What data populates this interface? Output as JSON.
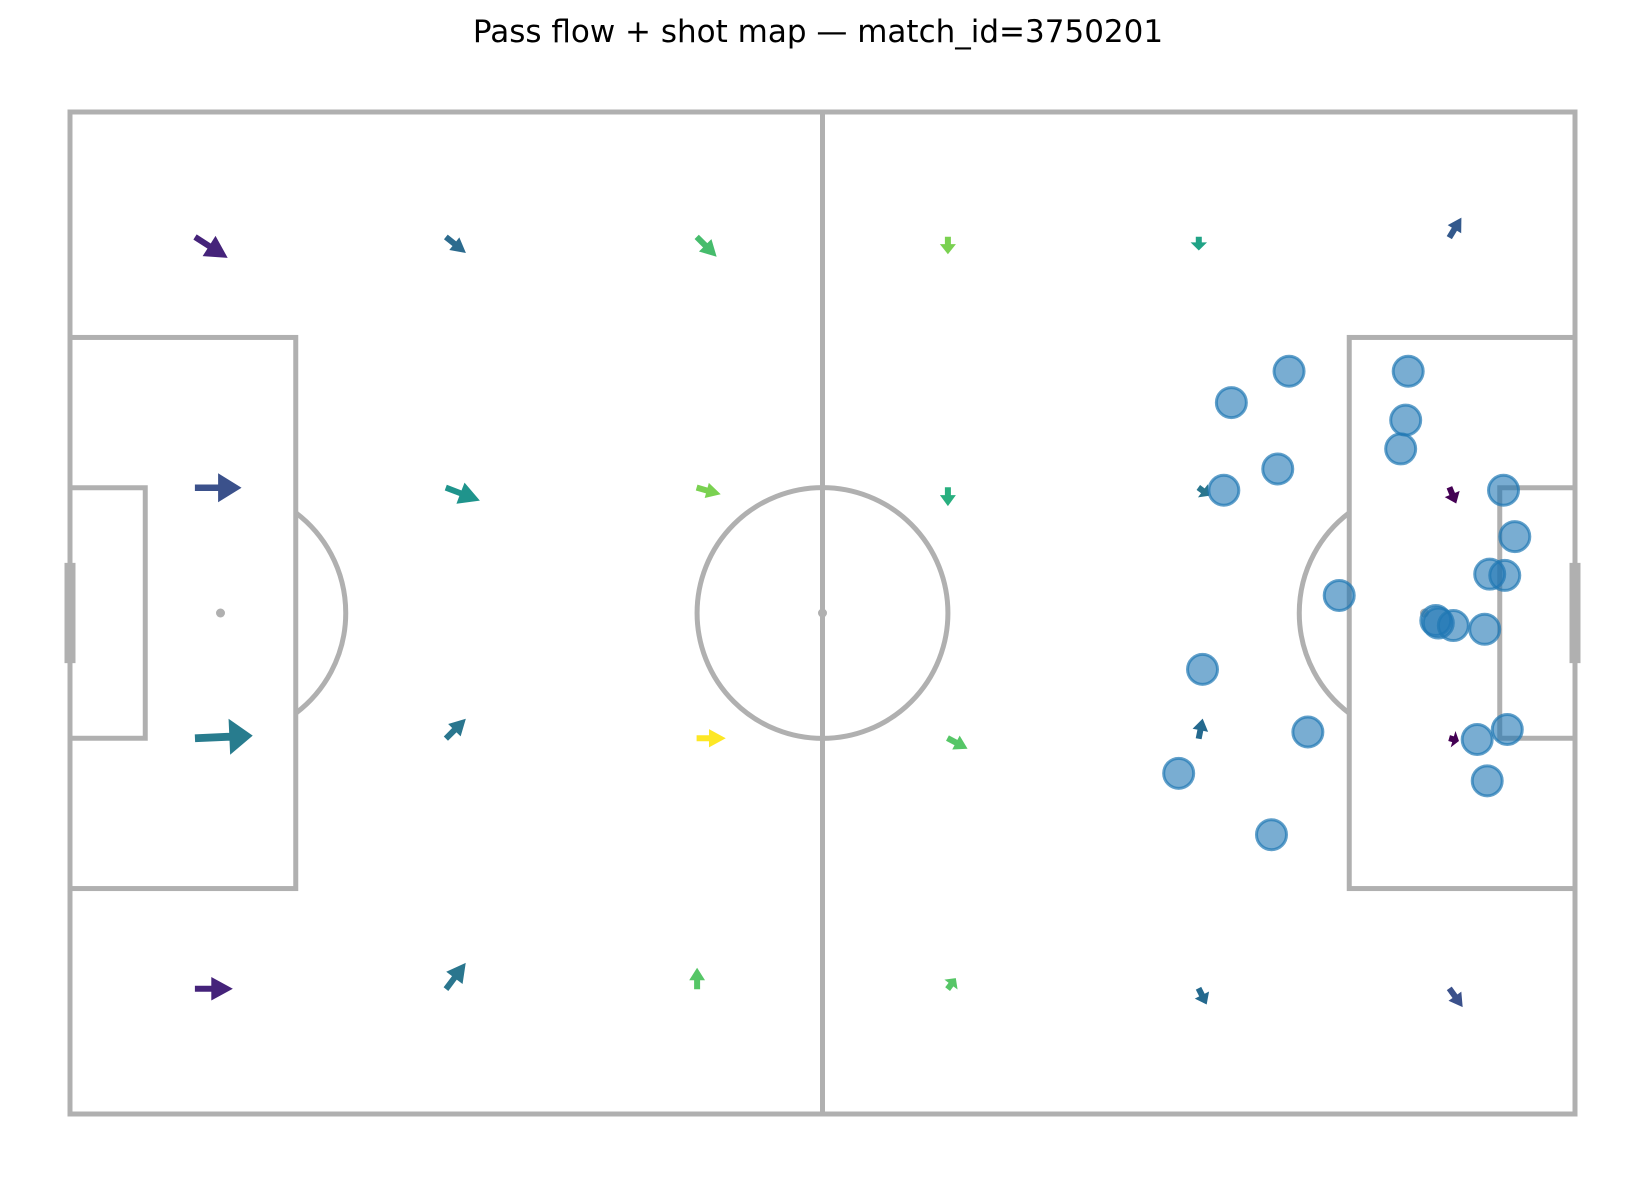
{
  "chart_data": {
    "type": "scatter",
    "title": "Pass flow + shot map — match_id=3750201",
    "pitch": {
      "x_range": [
        0,
        120
      ],
      "y_range": [
        0,
        80
      ],
      "line_color": "#b0b0b0"
    },
    "shot_color": "#1f77b4",
    "pass_flow": [
      {
        "x": 10,
        "y": 10,
        "dx": 2.5,
        "dy": 1.6,
        "color": "#45237a"
      },
      {
        "x": 30,
        "y": 10,
        "dx": 1.5,
        "dy": 1.2,
        "color": "#2c6b8e"
      },
      {
        "x": 50,
        "y": 10,
        "dx": 1.5,
        "dy": 1.5,
        "color": "#46bc6c"
      },
      {
        "x": 70,
        "y": 10,
        "dx": 0.0,
        "dy": 1.3,
        "color": "#7ad151"
      },
      {
        "x": 90,
        "y": 10,
        "dx": 0.0,
        "dy": 1.0,
        "color": "#20a386"
      },
      {
        "x": 110,
        "y": 10,
        "dx": 0.9,
        "dy": -1.5,
        "color": "#33598c"
      },
      {
        "x": 10,
        "y": 30,
        "dx": 3.6,
        "dy": 0.0,
        "color": "#3b518b"
      },
      {
        "x": 30,
        "y": 30,
        "dx": 2.6,
        "dy": 1.0,
        "color": "#1f948c"
      },
      {
        "x": 50,
        "y": 30,
        "dx": 1.8,
        "dy": 0.5,
        "color": "#7ad151"
      },
      {
        "x": 70,
        "y": 30,
        "dx": 0.0,
        "dy": 1.4,
        "color": "#29af7f"
      },
      {
        "x": 90,
        "y": 30,
        "dx": 0.8,
        "dy": 0.6,
        "color": "#2a768e"
      },
      {
        "x": 110,
        "y": 30,
        "dx": 0.5,
        "dy": 1.2,
        "color": "#440154"
      },
      {
        "x": 10,
        "y": 50,
        "dx": 4.5,
        "dy": -0.2,
        "color": "#287c8e"
      },
      {
        "x": 30,
        "y": 50,
        "dx": 1.5,
        "dy": -1.5,
        "color": "#2a768e"
      },
      {
        "x": 50,
        "y": 50,
        "dx": 2.2,
        "dy": 0.0,
        "color": "#fde725"
      },
      {
        "x": 70,
        "y": 50,
        "dx": 1.5,
        "dy": 0.8,
        "color": "#56c667"
      },
      {
        "x": 90,
        "y": 50,
        "dx": 0.3,
        "dy": -1.5,
        "color": "#24698e"
      },
      {
        "x": 110,
        "y": 50,
        "dx": 0.7,
        "dy": 0.2,
        "color": "#440154"
      },
      {
        "x": 10,
        "y": 70,
        "dx": 2.9,
        "dy": 0.0,
        "color": "#45237a"
      },
      {
        "x": 30,
        "y": 70,
        "dx": 1.5,
        "dy": -2.0,
        "color": "#2a768e"
      },
      {
        "x": 50,
        "y": 70,
        "dx": 0.0,
        "dy": -1.6,
        "color": "#56c667"
      },
      {
        "x": 70,
        "y": 70,
        "dx": 0.6,
        "dy": -0.8,
        "color": "#56c667"
      },
      {
        "x": 90,
        "y": 70,
        "dx": 0.6,
        "dy": 1.2,
        "color": "#24698e"
      },
      {
        "x": 110,
        "y": 70,
        "dx": 1.0,
        "dy": 1.4,
        "color": "#3b518b"
      }
    ],
    "shots": [
      {
        "x": 97.2,
        "y": 20.7
      },
      {
        "x": 106.7,
        "y": 20.7
      },
      {
        "x": 92.6,
        "y": 23.2
      },
      {
        "x": 106.5,
        "y": 24.6
      },
      {
        "x": 106.1,
        "y": 26.9
      },
      {
        "x": 96.3,
        "y": 28.5
      },
      {
        "x": 92.0,
        "y": 30.2
      },
      {
        "x": 114.3,
        "y": 30.2
      },
      {
        "x": 115.2,
        "y": 33.9
      },
      {
        "x": 113.2,
        "y": 36.9
      },
      {
        "x": 114.4,
        "y": 37.0
      },
      {
        "x": 101.2,
        "y": 38.6
      },
      {
        "x": 108.9,
        "y": 40.6
      },
      {
        "x": 109.1,
        "y": 40.8
      },
      {
        "x": 110.3,
        "y": 41.0
      },
      {
        "x": 112.8,
        "y": 41.3
      },
      {
        "x": 90.3,
        "y": 44.5
      },
      {
        "x": 98.7,
        "y": 49.5
      },
      {
        "x": 114.6,
        "y": 49.3
      },
      {
        "x": 112.2,
        "y": 50.1
      },
      {
        "x": 88.4,
        "y": 52.8
      },
      {
        "x": 113.0,
        "y": 53.4
      },
      {
        "x": 95.8,
        "y": 57.7
      }
    ]
  }
}
